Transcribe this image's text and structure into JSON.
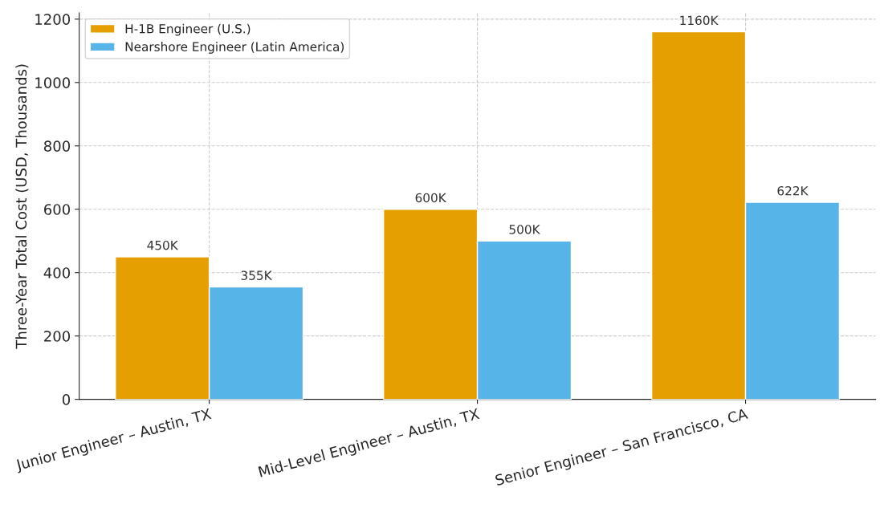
{
  "chart_data": {
    "type": "bar",
    "ylabel": "Three-Year Total Cost (USD, Thousands)",
    "categories": [
      "Junior Engineer – Austin, TX",
      "Mid-Level Engineer – Austin, TX",
      "Senior Engineer – San Francisco, CA"
    ],
    "series": [
      {
        "name": "H-1B Engineer (U.S.)",
        "color": "#e69f00",
        "values": [
          450,
          600,
          1160
        ],
        "value_labels": [
          "450K",
          "600K",
          "1160K"
        ]
      },
      {
        "name": "Nearshore Engineer (Latin America)",
        "color": "#56b4e9",
        "values": [
          355,
          500,
          622
        ],
        "value_labels": [
          "355K",
          "500K",
          "622K"
        ]
      }
    ],
    "ylim": [
      0,
      1220
    ],
    "yticks": [
      0,
      200,
      400,
      600,
      800,
      1000,
      1200
    ],
    "grid": true,
    "legend": "top left"
  }
}
